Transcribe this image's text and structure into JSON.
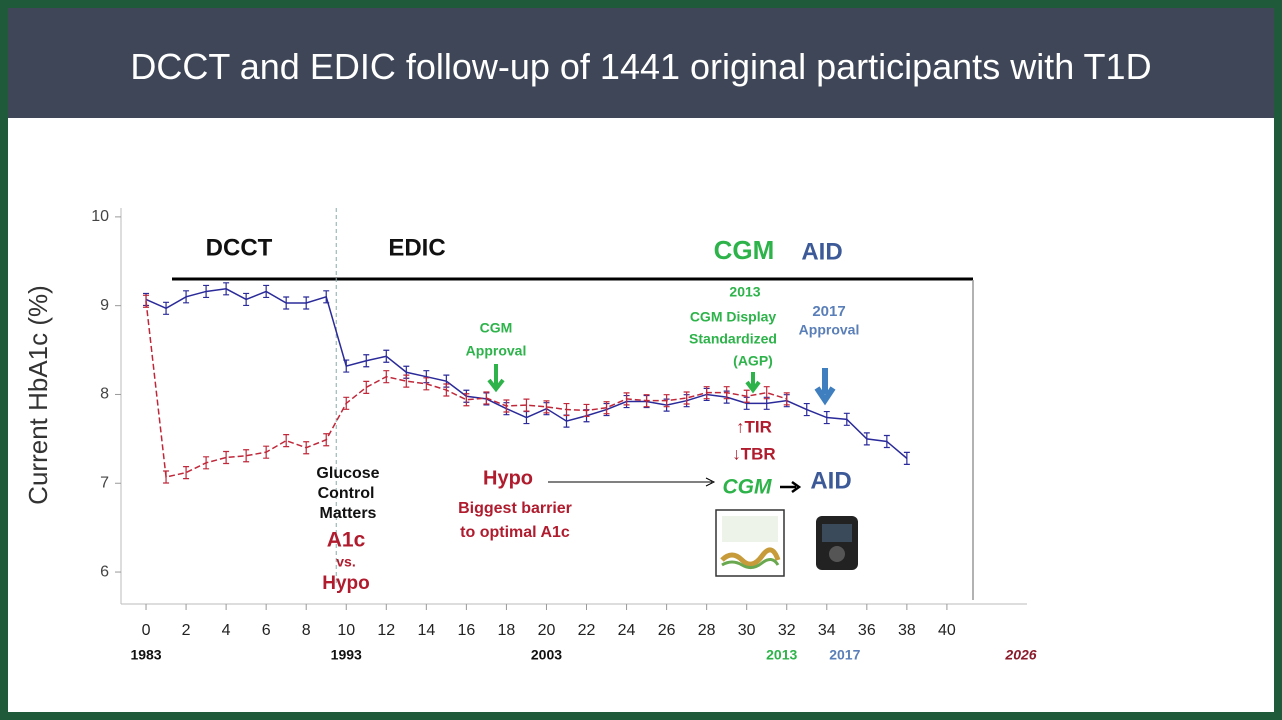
{
  "header": {
    "title": "DCCT and EDIC  follow-up of 1441 original participants with T1D"
  },
  "chart_data": {
    "type": "line",
    "y_label": "Current HbA1c (%)",
    "x": [
      0,
      1,
      2,
      3,
      4,
      5,
      6,
      7,
      8,
      9,
      10,
      11,
      12,
      13,
      14,
      15,
      16,
      17,
      18,
      19,
      20,
      21,
      22,
      23,
      24,
      25,
      26,
      27,
      28,
      29,
      30,
      31,
      32,
      33,
      34,
      35,
      36,
      37,
      38
    ],
    "series": [
      {
        "color": "#2a2a9a",
        "dash": false,
        "values": [
          9.07,
          8.97,
          9.1,
          9.16,
          9.19,
          9.07,
          9.16,
          9.03,
          9.03,
          9.1,
          8.32,
          8.38,
          8.43,
          8.25,
          8.2,
          8.15,
          7.98,
          7.95,
          7.84,
          7.74,
          7.84,
          7.7,
          7.76,
          7.83,
          7.92,
          7.92,
          7.88,
          7.93,
          8.0,
          7.97,
          7.9,
          7.9,
          7.93,
          7.83,
          7.74,
          7.72,
          7.5,
          7.47,
          7.28
        ]
      },
      {
        "color": "#c0283a",
        "dash": true,
        "values": [
          9.05,
          7.07,
          7.12,
          7.23,
          7.29,
          7.31,
          7.35,
          7.48,
          7.4,
          7.49,
          7.9,
          8.08,
          8.2,
          8.15,
          8.12,
          8.05,
          7.94,
          7.96,
          7.87,
          7.88,
          7.86,
          7.83,
          7.82,
          7.85,
          7.95,
          7.93,
          7.93,
          7.96,
          8.02,
          8.02,
          7.98,
          8.02,
          7.95,
          null,
          null,
          null,
          null,
          null,
          null
        ]
      }
    ],
    "xlim": [
      -1.25,
      44
    ],
    "ylim": [
      5.64,
      10.1
    ],
    "xticks": [
      0,
      2,
      4,
      6,
      8,
      10,
      12,
      14,
      16,
      18,
      20,
      22,
      24,
      26,
      28,
      30,
      32,
      34,
      36,
      38,
      40
    ],
    "yticks": [
      6,
      7,
      8,
      9,
      10
    ],
    "x2ticks": [
      {
        "value": 0,
        "label": "1983"
      },
      {
        "value": 10,
        "label": "1993"
      },
      {
        "value": 20,
        "label": "2003"
      },
      {
        "value": 31.75,
        "label": "2013"
      },
      {
        "value": 34.9,
        "label": "2017"
      },
      {
        "value": 43.7,
        "label": "2026"
      }
    ],
    "x2tick_colors": [
      "#111111",
      "#111111",
      "#111111",
      "#2db34a",
      "#5a7fb8",
      "#8b1a2a"
    ],
    "divider_x": 9.5,
    "annotations": [
      "DCCT",
      "EDIC",
      "CGM",
      "AID",
      "2013",
      "CGM Display",
      "Standardized",
      "(AGP)",
      "2017",
      "Approval",
      "CGM",
      "Approval",
      "↑TIR",
      "↓TBR",
      "Hypo",
      "Biggest barrier",
      "to optimal A1c",
      "CGM",
      "AID",
      "Glucose",
      "Control",
      "Matters",
      "A1c",
      "vs.",
      "Hypo"
    ]
  }
}
